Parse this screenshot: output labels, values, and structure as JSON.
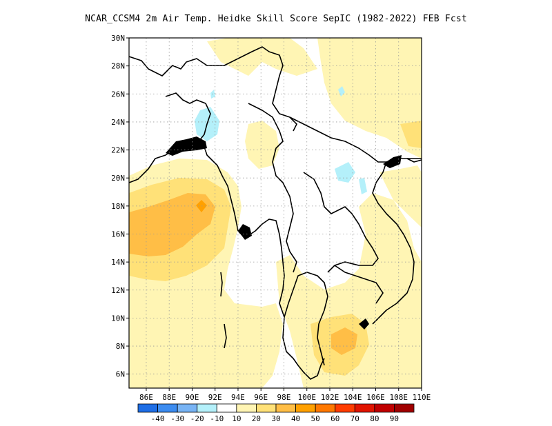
{
  "title": "NCAR_CCSM4  2m Air Temp. Heidke Skill Score SepIC (1982-2022) FEB Fcst",
  "map": {
    "lat_ticks": [
      "30N",
      "28N",
      "26N",
      "24N",
      "22N",
      "20N",
      "18N",
      "16N",
      "14N",
      "12N",
      "10N",
      "8N",
      "6N"
    ],
    "lon_ticks": [
      "86E",
      "88E",
      "90E",
      "92E",
      "94E",
      "96E",
      "98E",
      "100E",
      "102E",
      "104E",
      "106E",
      "108E",
      "110E"
    ],
    "lat_range": [
      5,
      30
    ],
    "lon_range": [
      84.5,
      110
    ],
    "grid": "dotted"
  },
  "colorbar": {
    "labels": [
      "-40",
      "-30",
      "-20",
      "-10",
      "10",
      "20",
      "30",
      "40",
      "50",
      "60",
      "70",
      "80",
      "90"
    ],
    "colors": [
      "#1e6ee6",
      "#3c8cf0",
      "#78b4f5",
      "#b4f0fa",
      "#ffffff",
      "#fff5b4",
      "#ffe178",
      "#ffbe46",
      "#ffa000",
      "#ff7800",
      "#ff3c00",
      "#e11400",
      "#c00000",
      "#a00000"
    ]
  },
  "field_colors": {
    "light_yellow": "#fff5b4",
    "yellow": "#ffe178",
    "orange": "#ffbe46",
    "dark_orange": "#ffa000",
    "light_blue": "#b4f0fa"
  }
}
